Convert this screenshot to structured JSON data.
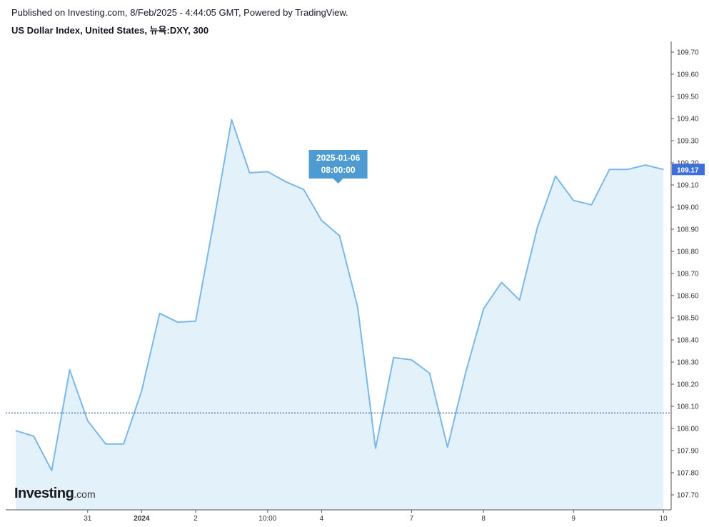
{
  "header": {
    "published": "Published on Investing.com, 8/Feb/2025 - 4:44:05 GMT, Powered by TradingView.",
    "symbol_title": "US Dollar Index, United States, 뉴욕:DXY, 300"
  },
  "logo": {
    "main": "Investing",
    "sub": ".com"
  },
  "colors": {
    "line": "#7ab8e8",
    "fill": "#e3f1fb",
    "reference_line": "#1f3c9c",
    "price_badge": "#3f6fd8",
    "tooltip": "#4d9bd0"
  },
  "chart_data": {
    "type": "area",
    "title": "US Dollar Index, United States, 뉴욕:DXY, 300",
    "xlabel": "",
    "ylabel": "",
    "ylim": [
      107.65,
      109.74
    ],
    "y_ticks": [
      "109.70",
      "109.60",
      "109.50",
      "109.40",
      "109.30",
      "109.20",
      "109.10",
      "109.00",
      "108.90",
      "108.80",
      "108.70",
      "108.60",
      "108.50",
      "108.40",
      "108.30",
      "108.20",
      "108.10",
      "108.00",
      "107.90",
      "107.80",
      "107.70"
    ],
    "x_ticks": [
      {
        "label": "31",
        "index": 4,
        "bold": false
      },
      {
        "label": "2024",
        "index": 7,
        "bold": true
      },
      {
        "label": "2",
        "index": 10,
        "bold": false
      },
      {
        "label": "10:00",
        "index": 14,
        "bold": false
      },
      {
        "label": "4",
        "index": 17,
        "bold": false
      },
      {
        "label": "7",
        "index": 22,
        "bold": false
      },
      {
        "label": "8",
        "index": 26,
        "bold": false
      },
      {
        "label": "9",
        "index": 31,
        "bold": false
      },
      {
        "label": "10",
        "index": 36,
        "bold": false
      }
    ],
    "series": [
      {
        "values": [
          107.99,
          107.965,
          107.81,
          108.265,
          108.035,
          107.93,
          107.93,
          108.17,
          108.52,
          108.48,
          108.485,
          108.93,
          109.395,
          109.155,
          109.16,
          109.115,
          109.08,
          108.94,
          108.87,
          108.55,
          107.91,
          108.32,
          108.31,
          108.25,
          107.915,
          108.25,
          108.54,
          108.66,
          108.58,
          108.91,
          109.14,
          109.03,
          109.01,
          109.17,
          109.17,
          109.19,
          109.17
        ]
      }
    ],
    "last_price": "109.17",
    "reference_price": 108.07,
    "tooltip": {
      "date": "2025-01-06",
      "time": "08:00:00",
      "x_index": 18
    },
    "grid": false,
    "legend": "none"
  }
}
